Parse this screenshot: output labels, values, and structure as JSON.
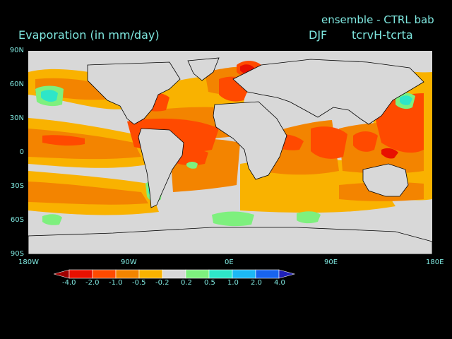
{
  "header": {
    "title": "Evaporation (in mm/day)",
    "run": "ensemble - CTRL bab",
    "season": "DJF",
    "fields": "tcrvH-tcrta"
  },
  "axes": {
    "lat_labels": [
      "90N",
      "60N",
      "30N",
      "0",
      "30S",
      "60S",
      "90S"
    ],
    "lon_labels": [
      "180W",
      "90W",
      "0E",
      "90E",
      "180E"
    ]
  },
  "legend": {
    "labels": [
      "-4.0",
      "-2.0",
      "-1.0",
      "-0.5",
      "-0.2",
      "0.2",
      "0.5",
      "1.0",
      "2.0",
      "4.0"
    ],
    "colors": [
      "#a00000",
      "#e81000",
      "#ff4a00",
      "#f38400",
      "#f9b200",
      "#d8d8d8",
      "#7ef07e",
      "#2ee6c8",
      "#1cb8f4",
      "#1864ee",
      "#2020b8"
    ]
  },
  "colors": {
    "background": "#000000",
    "text": "#7fe8e0",
    "land": "#d8d8d8",
    "coast": "#000000"
  }
}
